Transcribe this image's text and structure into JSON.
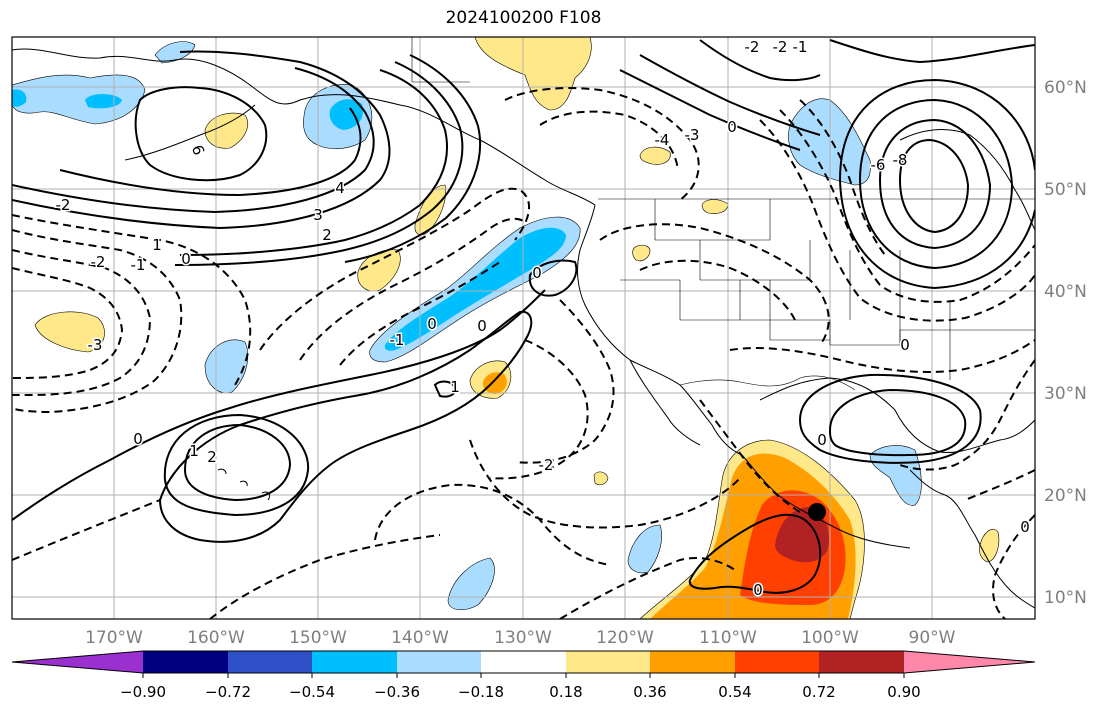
{
  "title": "2024100200 F108",
  "lon_labels": [
    "170°W",
    "160°W",
    "150°W",
    "140°W",
    "130°W",
    "120°W",
    "110°W",
    "100°W",
    "90°W"
  ],
  "lat_labels": [
    "60°N",
    "50°N",
    "40°N",
    "30°N",
    "20°N",
    "10°N"
  ],
  "colorbar": {
    "ticks": [
      "−0.90",
      "−0.72",
      "−0.54",
      "−0.36",
      "−0.18",
      "0.18",
      "0.36",
      "0.54",
      "0.72",
      "0.90"
    ],
    "colors": [
      "#9b30d0",
      "#000080",
      "#3050c8",
      "#00bfff",
      "#aadcff",
      "#ffffff",
      "#ffe88a",
      "#ffa000",
      "#ff4000",
      "#b22222",
      "#ff88aa"
    ]
  },
  "contour_labels": [
    "6",
    "4",
    "3",
    "2",
    "1",
    "0",
    "-2",
    "-3",
    "-1",
    "-4",
    "-6",
    "-8",
    "-2",
    "2",
    "1",
    "1",
    "0",
    "0",
    "0",
    "0",
    "-1",
    "-2",
    "0",
    "0",
    "0",
    "0",
    "-2",
    "-1",
    "-3",
    "-2",
    "0"
  ],
  "colors": {
    "frame": "#000000",
    "grid": "#b0b0b0",
    "contour": "#000000",
    "tick_text": "#7f7f7f",
    "storm_marker": "#000000"
  }
}
